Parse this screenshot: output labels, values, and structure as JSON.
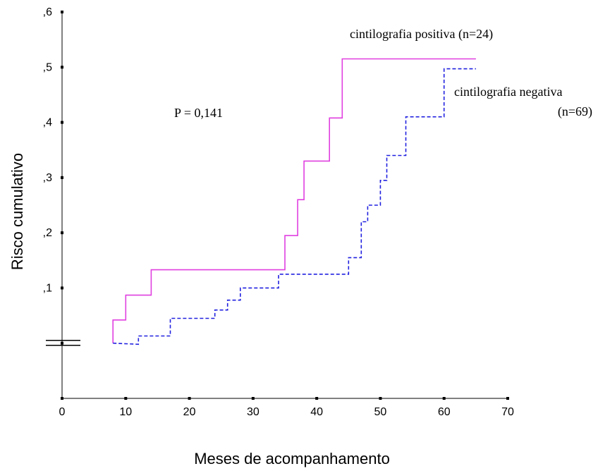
{
  "chart_data": {
    "type": "line",
    "step": true,
    "xlabel": "Meses de acompanhamento",
    "ylabel": "Risco cumulativo",
    "xlim": [
      0,
      70
    ],
    "ylim": [
      -0.1,
      0.6
    ],
    "axis_break_at": 0,
    "x_ticks": [
      0,
      10,
      20,
      30,
      40,
      50,
      60,
      70
    ],
    "x_tick_labels": [
      "0",
      "10",
      "20",
      "30",
      "40",
      "50",
      "60",
      "70"
    ],
    "y_ticks": [
      0.1,
      0.2,
      0.3,
      0.4,
      0.5,
      0.6
    ],
    "y_tick_labels": [
      ",1",
      ",2",
      ",3",
      ",4",
      ",5",
      ",6"
    ],
    "grid": false,
    "annotation": "P = 0,141",
    "series": [
      {
        "name": "cintilografia positiva (n=24)",
        "color": "#e040e0",
        "dash": "solid",
        "x": [
          8,
          8,
          10,
          10,
          14,
          14,
          35,
          35,
          37,
          37,
          38,
          38,
          42,
          42,
          44,
          44,
          65
        ],
        "y": [
          0.0,
          0.042,
          0.042,
          0.087,
          0.087,
          0.133,
          0.133,
          0.195,
          0.195,
          0.26,
          0.26,
          0.33,
          0.33,
          0.408,
          0.408,
          0.515,
          0.515
        ]
      },
      {
        "name": "cintilografia negativa (n=69)",
        "color": "#2020e0",
        "dash": "dashed",
        "x": [
          8,
          12,
          12,
          17,
          17,
          24,
          24,
          26,
          26,
          28,
          28,
          34,
          34,
          45,
          45,
          47,
          47,
          48,
          48,
          50,
          50,
          51,
          51,
          54,
          54,
          60,
          60,
          65
        ],
        "y": [
          0.0,
          -0.002,
          0.013,
          0.013,
          0.045,
          0.045,
          0.06,
          0.06,
          0.078,
          0.078,
          0.1,
          0.1,
          0.125,
          0.125,
          0.155,
          0.155,
          0.22,
          0.22,
          0.25,
          0.25,
          0.295,
          0.295,
          0.34,
          0.34,
          0.41,
          0.41,
          0.497,
          0.497
        ]
      }
    ],
    "legend_labels": [
      {
        "lines": [
          "cintilografia positiva (n=24)"
        ]
      },
      {
        "lines": [
          "cintilografia negativa",
          "(n=69)"
        ]
      }
    ]
  }
}
